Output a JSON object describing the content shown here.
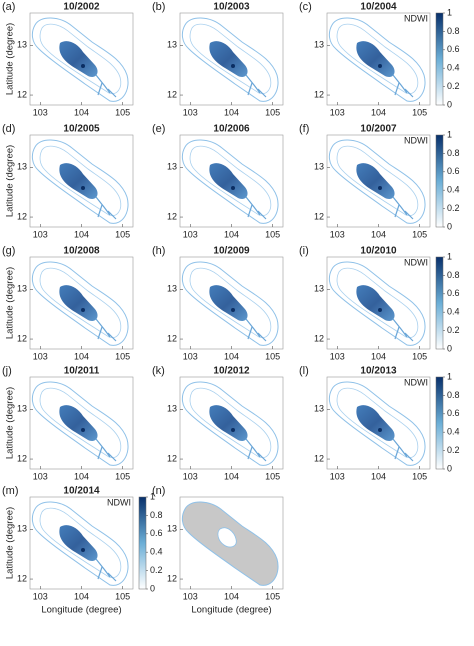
{
  "figure": {
    "panels": [
      {
        "label": "(a)",
        "title": "10/2002"
      },
      {
        "label": "(b)",
        "title": "10/2003"
      },
      {
        "label": "(c)",
        "title": "10/2004"
      },
      {
        "label": "(d)",
        "title": "10/2005"
      },
      {
        "label": "(e)",
        "title": "10/2006"
      },
      {
        "label": "(f)",
        "title": "10/2007"
      },
      {
        "label": "(g)",
        "title": "10/2008"
      },
      {
        "label": "(h)",
        "title": "10/2009"
      },
      {
        "label": "(i)",
        "title": "10/2010"
      },
      {
        "label": "(j)",
        "title": "10/2011"
      },
      {
        "label": "(k)",
        "title": "10/2012"
      },
      {
        "label": "(l)",
        "title": "10/2013"
      },
      {
        "label": "(m)",
        "title": "10/2014"
      },
      {
        "label": "(n)"
      }
    ],
    "xlabel": "Longitude (degree)",
    "ylabel": "Latitude (degree)",
    "xlim": [
      102.75,
      105.25
    ],
    "ylim": [
      11.8,
      13.65
    ],
    "xticks": [
      103,
      104,
      105
    ],
    "yticks": [
      12,
      13
    ],
    "colorbar": {
      "label": "NDWI",
      "ticks": [
        0,
        0.2,
        0.4,
        0.6,
        0.8,
        1
      ]
    }
  }
}
